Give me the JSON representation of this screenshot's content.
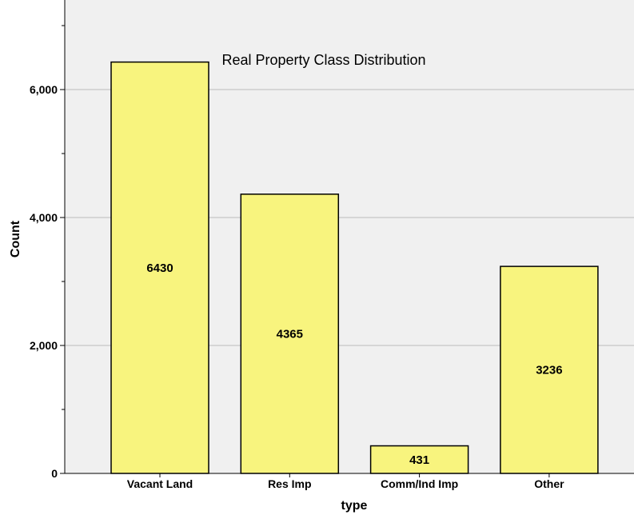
{
  "chart_data": {
    "type": "bar",
    "title": "Real Property Class Distribution",
    "xlabel": "type",
    "ylabel": "Count",
    "categories": [
      "Vacant Land",
      "Res Imp",
      "Comm/Ind Imp",
      "Other"
    ],
    "values": [
      6430,
      4365,
      431,
      3236
    ],
    "data_labels": [
      "6430",
      "4365",
      "431",
      "3236"
    ],
    "ylim": [
      0,
      7400
    ],
    "y_ticks": [
      {
        "value": 0,
        "label": "0"
      },
      {
        "value": 2000,
        "label": "2,000"
      },
      {
        "value": 4000,
        "label": "4,000"
      },
      {
        "value": 6000,
        "label": "6,000"
      }
    ],
    "y_minor_ticks": [
      1000,
      3000,
      5000,
      7000
    ],
    "gridlines": [
      2000,
      4000,
      6000
    ],
    "grid": true,
    "colors": {
      "bar_fill": "#f8f47e",
      "bar_stroke": "#000000",
      "plot_background": "#f0f0f0",
      "grid": "#bdbdbd"
    }
  }
}
